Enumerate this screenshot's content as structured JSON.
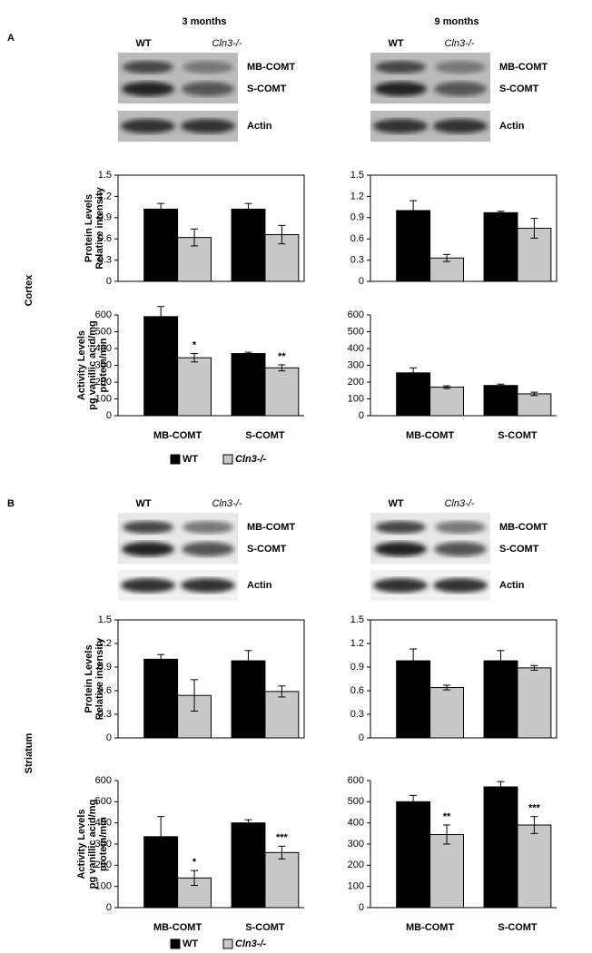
{
  "figure": {
    "columns": [
      "3 months",
      "9 months"
    ],
    "panels": [
      {
        "label": "A",
        "region": "Cortex",
        "lanes": [
          "WT",
          "Cln3-/-"
        ],
        "bands": [
          "MB-COMT",
          "S-COMT",
          "Actin"
        ],
        "legend": [
          "WT",
          "Cln3-/-"
        ]
      },
      {
        "label": "B",
        "region": "Striatum",
        "lanes": [
          "WT",
          "Cln3-/-"
        ],
        "bands": [
          "MB-COMT",
          "S-COMT",
          "Actin"
        ],
        "legend": [
          "WT",
          "Cln3-/-"
        ]
      }
    ]
  },
  "chart_data": [
    {
      "type": "bar",
      "ylabel": [
        "Protein Levels",
        "Relative intensity"
      ],
      "categories": [
        null,
        null
      ],
      "ylim": [
        0,
        1.5
      ],
      "yticks": [
        0,
        0.3,
        0.6,
        0.9,
        1.2,
        1.5
      ],
      "frame": true,
      "series": [
        {
          "color": "#000000",
          "values": [
            1.02,
            1.02
          ],
          "errors": [
            0.08,
            0.08
          ]
        },
        {
          "color": "#c8c8c8",
          "values": [
            0.62,
            0.66
          ],
          "errors": [
            0.12,
            0.13
          ]
        }
      ]
    },
    {
      "type": "bar",
      "categories": [
        null,
        null
      ],
      "ylim": [
        0,
        1.5
      ],
      "yticks": [
        0,
        0.3,
        0.6,
        0.9,
        1.2,
        1.5
      ],
      "frame": true,
      "series": [
        {
          "color": "#000000",
          "values": [
            1.0,
            0.97
          ],
          "errors": [
            0.14,
            0.02
          ]
        },
        {
          "color": "#c8c8c8",
          "values": [
            0.33,
            0.75
          ],
          "errors": [
            0.05,
            0.14
          ]
        }
      ]
    },
    {
      "type": "bar",
      "ylabel": [
        "Activity Levels",
        "pg vanillic acid/mg",
        "protein/min"
      ],
      "categories": [
        "MB-COMT",
        "S-COMT"
      ],
      "ylim": [
        0,
        600
      ],
      "yticks": [
        0,
        100,
        200,
        300,
        400,
        500,
        600
      ],
      "frame": false,
      "series": [
        {
          "color": "#000000",
          "values": [
            590,
            370
          ],
          "errors": [
            60,
            8
          ]
        },
        {
          "color": "#c8c8c8",
          "values": [
            345,
            285
          ],
          "errors": [
            25,
            18
          ],
          "significance": [
            "*",
            "**"
          ]
        }
      ]
    },
    {
      "type": "bar",
      "categories": [
        "MB-COMT",
        "S-COMT"
      ],
      "ylim": [
        0,
        600
      ],
      "yticks": [
        0,
        100,
        200,
        300,
        400,
        500,
        600
      ],
      "frame": false,
      "series": [
        {
          "color": "#000000",
          "values": [
            255,
            180
          ],
          "errors": [
            30,
            8
          ]
        },
        {
          "color": "#c8c8c8",
          "values": [
            170,
            130
          ],
          "errors": [
            8,
            10
          ]
        }
      ]
    },
    {
      "type": "bar",
      "ylabel": [
        "Protein Levels",
        "Relative intensity"
      ],
      "categories": [
        null,
        null
      ],
      "ylim": [
        0,
        1.5
      ],
      "yticks": [
        0,
        0.3,
        0.6,
        0.9,
        1.2,
        1.5
      ],
      "frame": true,
      "series": [
        {
          "color": "#000000",
          "values": [
            1.0,
            0.98
          ],
          "errors": [
            0.06,
            0.13
          ]
        },
        {
          "color": "#c8c8c8",
          "values": [
            0.54,
            0.59
          ],
          "errors": [
            0.2,
            0.07
          ]
        }
      ]
    },
    {
      "type": "bar",
      "categories": [
        null,
        null
      ],
      "ylim": [
        0,
        1.5
      ],
      "yticks": [
        0,
        0.3,
        0.6,
        0.9,
        1.2,
        1.5
      ],
      "frame": true,
      "series": [
        {
          "color": "#000000",
          "values": [
            0.98,
            0.98
          ],
          "errors": [
            0.15,
            0.13
          ]
        },
        {
          "color": "#c8c8c8",
          "values": [
            0.64,
            0.89
          ],
          "errors": [
            0.03,
            0.03
          ]
        }
      ]
    },
    {
      "type": "bar",
      "ylabel": [
        "Activity Levels",
        "pg vanillic acid/mg",
        "protein/min"
      ],
      "categories": [
        "MB-COMT",
        "S-COMT"
      ],
      "ylim": [
        0,
        600
      ],
      "yticks": [
        0,
        100,
        200,
        300,
        400,
        500,
        600
      ],
      "frame": false,
      "series": [
        {
          "color": "#000000",
          "values": [
            335,
            400
          ],
          "errors": [
            95,
            15
          ]
        },
        {
          "color": "#c8c8c8",
          "values": [
            140,
            260
          ],
          "errors": [
            35,
            30
          ],
          "significance": [
            "*",
            "***"
          ]
        }
      ]
    },
    {
      "type": "bar",
      "categories": [
        "MB-COMT",
        "S-COMT"
      ],
      "ylim": [
        0,
        600
      ],
      "yticks": [
        0,
        100,
        200,
        300,
        400,
        500,
        600
      ],
      "frame": false,
      "series": [
        {
          "color": "#000000",
          "values": [
            500,
            570
          ],
          "errors": [
            30,
            25
          ]
        },
        {
          "color": "#c8c8c8",
          "values": [
            345,
            390
          ],
          "errors": [
            45,
            40
          ],
          "significance": [
            "**",
            "***"
          ]
        }
      ]
    }
  ]
}
